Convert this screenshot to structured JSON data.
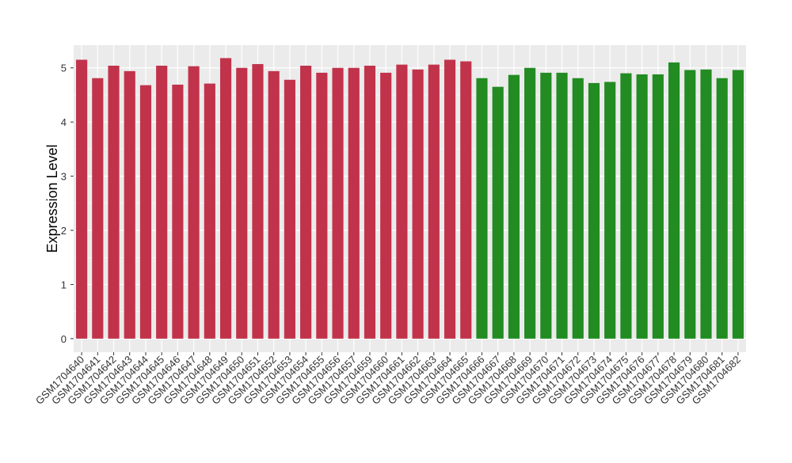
{
  "chart_data": {
    "type": "bar",
    "y_label": "Expression Level",
    "categories": [
      "GSM1704640",
      "GSM1704641",
      "GSM1704642",
      "GSM1704643",
      "GSM1704644",
      "GSM1704645",
      "GSM1704646",
      "GSM1704647",
      "GSM1704648",
      "GSM1704649",
      "GSM1704650",
      "GSM1704651",
      "GSM1704652",
      "GSM1704653",
      "GSM1704654",
      "GSM1704655",
      "GSM1704656",
      "GSM1704657",
      "GSM1704659",
      "GSM1704660",
      "GSM1704661",
      "GSM1704662",
      "GSM1704663",
      "GSM1704664",
      "GSM1704665",
      "GSM1704666",
      "GSM1704667",
      "GSM1704668",
      "GSM1704669",
      "GSM1704670",
      "GSM1704671",
      "GSM1704672",
      "GSM1704673",
      "GSM1704674",
      "GSM1704675",
      "GSM1704676",
      "GSM1704677",
      "GSM1704678",
      "GSM1704679",
      "GSM1704680",
      "GSM1704681",
      "GSM1704682"
    ],
    "values": [
      5.15,
      4.81,
      5.04,
      4.94,
      4.68,
      5.04,
      4.69,
      5.03,
      4.71,
      5.18,
      5.0,
      5.07,
      4.94,
      4.78,
      5.04,
      4.91,
      5.0,
      5.0,
      5.04,
      4.91,
      5.06,
      4.97,
      5.06,
      5.15,
      5.12,
      4.81,
      4.65,
      4.87,
      5.0,
      4.91,
      4.91,
      4.81,
      4.72,
      4.74,
      4.9,
      4.88,
      4.88,
      5.1,
      4.96,
      4.97,
      4.81,
      4.96
    ],
    "colors": [
      "#c1334b",
      "#c1334b",
      "#c1334b",
      "#c1334b",
      "#c1334b",
      "#c1334b",
      "#c1334b",
      "#c1334b",
      "#c1334b",
      "#c1334b",
      "#c1334b",
      "#c1334b",
      "#c1334b",
      "#c1334b",
      "#c1334b",
      "#c1334b",
      "#c1334b",
      "#c1334b",
      "#c1334b",
      "#c1334b",
      "#c1334b",
      "#c1334b",
      "#c1334b",
      "#c1334b",
      "#c1334b",
      "#228b22",
      "#228b22",
      "#228b22",
      "#228b22",
      "#228b22",
      "#228b22",
      "#228b22",
      "#228b22",
      "#228b22",
      "#228b22",
      "#228b22",
      "#228b22",
      "#228b22",
      "#228b22",
      "#228b22",
      "#228b22",
      "#228b22"
    ],
    "ylim": [
      -0.25,
      5.42
    ],
    "yticks": [
      0,
      1,
      2,
      3,
      4,
      5
    ],
    "grid": true
  }
}
